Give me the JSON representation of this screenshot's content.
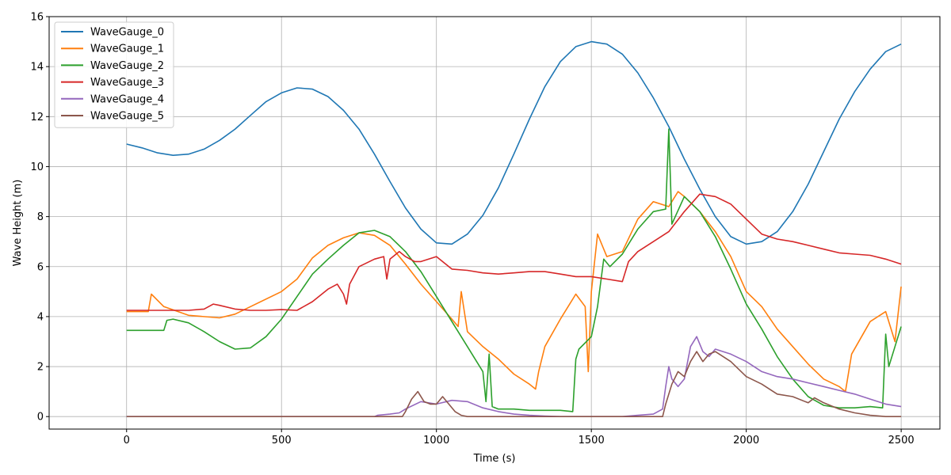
{
  "chart_data": {
    "type": "line",
    "title": "",
    "xlabel": "Time (s)",
    "ylabel": "Wave Height (m)",
    "xlim": [
      -250,
      2625
    ],
    "ylim": [
      -0.5,
      16
    ],
    "xticks": [
      0,
      500,
      1000,
      1500,
      2000,
      2500
    ],
    "yticks": [
      0,
      2,
      4,
      6,
      8,
      10,
      12,
      14,
      16
    ],
    "grid": true,
    "legend": "top-left",
    "series": [
      {
        "name": "WaveGauge_0",
        "color": "#1f77b4",
        "x": [
          0,
          50,
          100,
          150,
          200,
          250,
          300,
          350,
          400,
          450,
          500,
          550,
          600,
          650,
          700,
          750,
          800,
          850,
          900,
          950,
          1000,
          1050,
          1100,
          1150,
          1200,
          1250,
          1300,
          1350,
          1400,
          1450,
          1500,
          1550,
          1600,
          1650,
          1700,
          1750,
          1800,
          1850,
          1900,
          1950,
          2000,
          2050,
          2100,
          2150,
          2200,
          2250,
          2300,
          2350,
          2400,
          2450,
          2500
        ],
        "y": [
          10.9,
          10.75,
          10.55,
          10.45,
          10.5,
          10.7,
          11.05,
          11.5,
          12.05,
          12.6,
          12.95,
          13.15,
          13.1,
          12.8,
          12.25,
          11.5,
          10.5,
          9.4,
          8.35,
          7.5,
          6.95,
          6.9,
          7.3,
          8.05,
          9.15,
          10.5,
          11.9,
          13.2,
          14.2,
          14.8,
          15.0,
          14.9,
          14.5,
          13.75,
          12.75,
          11.6,
          10.3,
          9.1,
          8.0,
          7.2,
          6.9,
          7.0,
          7.4,
          8.2,
          9.3,
          10.6,
          11.9,
          13.0,
          13.9,
          14.6,
          14.9
        ]
      },
      {
        "name": "WaveGauge_1",
        "color": "#ff7f0e",
        "x": [
          0,
          70,
          80,
          120,
          200,
          300,
          350,
          400,
          500,
          550,
          600,
          650,
          700,
          750,
          800,
          850,
          900,
          950,
          1000,
          1050,
          1070,
          1080,
          1100,
          1150,
          1200,
          1250,
          1300,
          1320,
          1330,
          1350,
          1400,
          1450,
          1480,
          1490,
          1500,
          1520,
          1550,
          1600,
          1650,
          1700,
          1750,
          1780,
          1800,
          1850,
          1900,
          1950,
          2000,
          2050,
          2100,
          2150,
          2200,
          2250,
          2300,
          2320,
          2340,
          2400,
          2450,
          2480,
          2500
        ],
        "y": [
          4.2,
          4.2,
          4.9,
          4.4,
          4.05,
          3.95,
          4.1,
          4.4,
          5.0,
          5.5,
          6.35,
          6.85,
          7.15,
          7.35,
          7.25,
          6.85,
          6.1,
          5.3,
          4.6,
          3.9,
          3.6,
          5.0,
          3.4,
          2.8,
          2.3,
          1.7,
          1.3,
          1.1,
          1.8,
          2.8,
          3.9,
          4.9,
          4.4,
          1.8,
          5.0,
          7.3,
          6.4,
          6.6,
          7.9,
          8.6,
          8.4,
          9.0,
          8.8,
          8.2,
          7.4,
          6.4,
          5.0,
          4.4,
          3.5,
          2.8,
          2.1,
          1.5,
          1.2,
          1.0,
          2.5,
          3.8,
          4.2,
          3.0,
          5.2
        ]
      },
      {
        "name": "WaveGauge_2",
        "color": "#2ca02c",
        "x": [
          0,
          50,
          100,
          120,
          130,
          150,
          200,
          250,
          300,
          350,
          400,
          450,
          500,
          550,
          600,
          650,
          700,
          750,
          800,
          850,
          900,
          950,
          1000,
          1050,
          1100,
          1150,
          1160,
          1170,
          1180,
          1200,
          1250,
          1300,
          1350,
          1400,
          1440,
          1450,
          1460,
          1500,
          1520,
          1540,
          1560,
          1600,
          1650,
          1700,
          1740,
          1750,
          1760,
          1800,
          1850,
          1900,
          1950,
          2000,
          2050,
          2100,
          2150,
          2200,
          2250,
          2300,
          2350,
          2400,
          2440,
          2450,
          2460,
          2480,
          2500
        ],
        "y": [
          3.45,
          3.45,
          3.45,
          3.45,
          3.85,
          3.9,
          3.75,
          3.4,
          3.0,
          2.7,
          2.75,
          3.2,
          3.9,
          4.8,
          5.7,
          6.3,
          6.85,
          7.35,
          7.45,
          7.2,
          6.6,
          5.8,
          4.8,
          3.8,
          2.8,
          1.8,
          0.6,
          2.5,
          0.4,
          0.3,
          0.3,
          0.25,
          0.25,
          0.25,
          0.2,
          2.3,
          2.7,
          3.2,
          4.4,
          6.3,
          6.0,
          6.5,
          7.5,
          8.2,
          8.3,
          11.5,
          7.7,
          8.8,
          8.2,
          7.2,
          5.9,
          4.5,
          3.5,
          2.4,
          1.5,
          0.8,
          0.45,
          0.35,
          0.35,
          0.4,
          0.35,
          3.3,
          2.0,
          2.8,
          3.6
        ]
      },
      {
        "name": "WaveGauge_3",
        "color": "#d62728",
        "x": [
          0,
          100,
          200,
          250,
          280,
          300,
          350,
          400,
          450,
          500,
          550,
          600,
          650,
          680,
          700,
          710,
          720,
          750,
          800,
          830,
          840,
          850,
          880,
          900,
          930,
          950,
          1000,
          1050,
          1100,
          1150,
          1200,
          1250,
          1300,
          1350,
          1400,
          1450,
          1500,
          1550,
          1600,
          1620,
          1650,
          1700,
          1750,
          1800,
          1850,
          1900,
          1950,
          2000,
          2050,
          2100,
          2150,
          2200,
          2250,
          2300,
          2350,
          2400,
          2450,
          2500
        ],
        "y": [
          4.25,
          4.25,
          4.25,
          4.3,
          4.5,
          4.45,
          4.3,
          4.25,
          4.25,
          4.28,
          4.25,
          4.6,
          5.1,
          5.3,
          4.9,
          4.5,
          5.3,
          6.0,
          6.3,
          6.4,
          5.5,
          6.3,
          6.6,
          6.4,
          6.2,
          6.2,
          6.4,
          5.9,
          5.85,
          5.75,
          5.7,
          5.75,
          5.8,
          5.8,
          5.7,
          5.6,
          5.6,
          5.5,
          5.4,
          6.2,
          6.6,
          7.0,
          7.4,
          8.2,
          8.9,
          8.8,
          8.5,
          7.9,
          7.3,
          7.1,
          7.0,
          6.85,
          6.7,
          6.55,
          6.5,
          6.45,
          6.3,
          6.1
        ]
      },
      {
        "name": "WaveGauge_4",
        "color": "#9467bd",
        "x": [
          0,
          500,
          800,
          810,
          850,
          880,
          900,
          950,
          1000,
          1050,
          1100,
          1150,
          1200,
          1250,
          1300,
          1350,
          1400,
          1500,
          1600,
          1650,
          1700,
          1730,
          1740,
          1750,
          1760,
          1780,
          1800,
          1820,
          1840,
          1860,
          1880,
          1900,
          1950,
          2000,
          2050,
          2100,
          2150,
          2200,
          2250,
          2300,
          2350,
          2400,
          2450,
          2500
        ],
        "y": [
          0.0,
          0.0,
          0.0,
          0.05,
          0.1,
          0.15,
          0.3,
          0.6,
          0.5,
          0.65,
          0.6,
          0.35,
          0.2,
          0.1,
          0.05,
          0.02,
          0.0,
          0.0,
          0.0,
          0.05,
          0.1,
          0.3,
          1.2,
          2.0,
          1.5,
          1.2,
          1.5,
          2.8,
          3.2,
          2.6,
          2.4,
          2.7,
          2.5,
          2.2,
          1.8,
          1.6,
          1.5,
          1.35,
          1.2,
          1.05,
          0.9,
          0.7,
          0.5,
          0.4
        ]
      },
      {
        "name": "WaveGauge_5",
        "color": "#8c564b",
        "x": [
          0,
          500,
          890,
          900,
          920,
          940,
          960,
          980,
          1000,
          1020,
          1040,
          1060,
          1080,
          1100,
          1200,
          1500,
          1700,
          1730,
          1740,
          1760,
          1780,
          1800,
          1820,
          1840,
          1860,
          1880,
          1900,
          1950,
          2000,
          2050,
          2100,
          2150,
          2200,
          2220,
          2250,
          2300,
          2350,
          2400,
          2450,
          2500
        ],
        "y": [
          0.0,
          0.0,
          0.0,
          0.2,
          0.7,
          1.0,
          0.6,
          0.5,
          0.5,
          0.8,
          0.5,
          0.2,
          0.05,
          0.0,
          0.0,
          0.0,
          0.0,
          0.0,
          0.5,
          1.3,
          1.8,
          1.6,
          2.2,
          2.6,
          2.2,
          2.5,
          2.6,
          2.2,
          1.6,
          1.3,
          0.9,
          0.8,
          0.55,
          0.75,
          0.55,
          0.3,
          0.15,
          0.05,
          0.0,
          0.0
        ]
      }
    ]
  }
}
